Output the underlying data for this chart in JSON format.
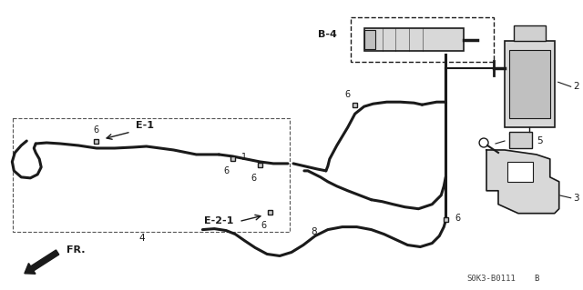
{
  "bg_color": "#ffffff",
  "fig_width": 6.4,
  "fig_height": 3.19,
  "dpi": 100,
  "diagram_code": "S0K3-B0111",
  "line_color": "#1a1a1a",
  "line_width": 1.6
}
